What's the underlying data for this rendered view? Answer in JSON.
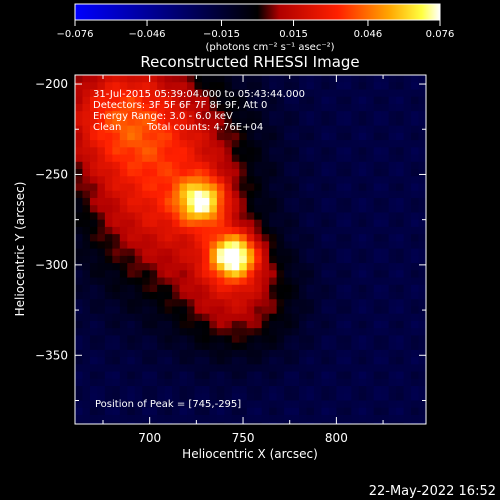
{
  "colorbar": {
    "tick_labels": [
      "−0.076",
      "−0.046",
      "−0.015",
      "0.015",
      "0.046",
      "0.076"
    ],
    "tick_values": [
      -0.076,
      -0.046,
      -0.015,
      0.015,
      0.046,
      0.076
    ],
    "range": [
      -0.076,
      0.076
    ],
    "units": "(photons cm⁻² s⁻¹ asec⁻²)",
    "colors": [
      "#0000ff",
      "#000000",
      "#ff0000",
      "#ffff00",
      "#ffffff"
    ]
  },
  "chart_data": {
    "type": "heatmap",
    "title": "Reconstructed RHESSI Image",
    "xlabel": "Heliocentric X (arcsec)",
    "ylabel": "Heliocentric Y (arcsec)",
    "xlim": [
      660,
      848
    ],
    "ylim": [
      -388,
      -195
    ],
    "xticks": [
      700,
      750,
      800
    ],
    "yticks": [
      -200,
      -250,
      -300,
      -350
    ],
    "annotations": {
      "time_range": "31-Jul-2015 05:39:04.000 to 05:43:44.000",
      "detectors": "Detectors: 3F 5F 6F 7F 8F 9F, Att 0",
      "energy": "Energy Range: 3.0 - 6.0 keV",
      "method": "Clean",
      "counts": "Total counts: 4.76E+04",
      "peak": "Position of Peak = [745,-295]"
    },
    "peak": [
      745,
      -295
    ],
    "sources": [
      {
        "x": 745,
        "y": -295,
        "amplitude": 0.076
      },
      {
        "x": 728,
        "y": -265,
        "amplitude": 0.06
      }
    ],
    "background_level": -0.02
  },
  "footer": {
    "date": "22-May-2022 16:52"
  }
}
